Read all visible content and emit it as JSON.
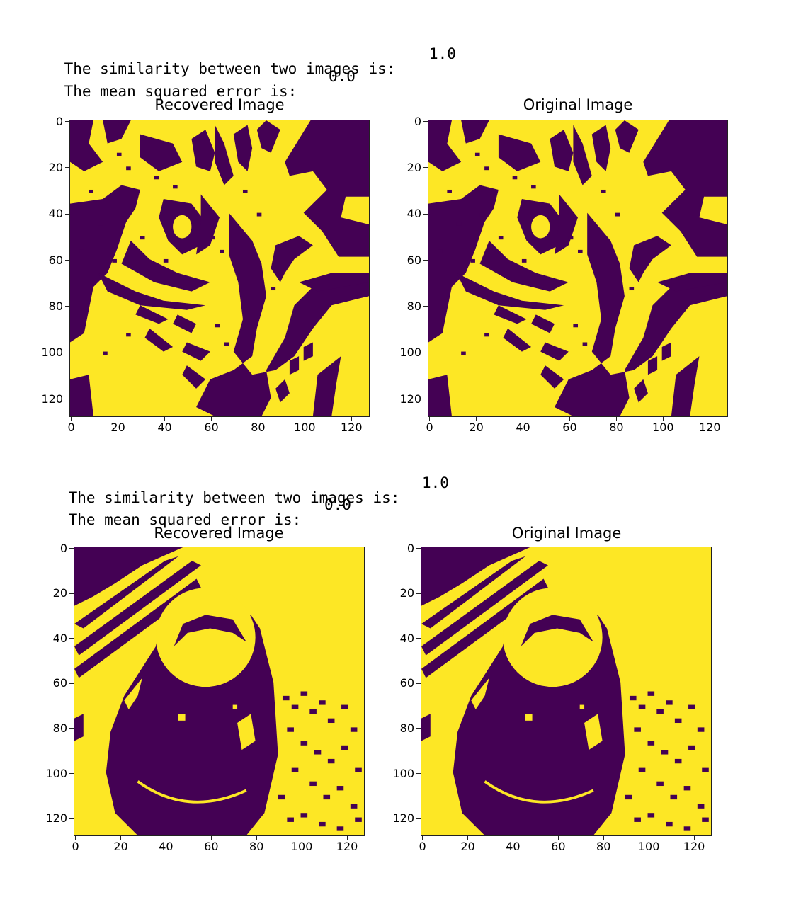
{
  "outputs": [
    {
      "similarity_label": "The similarity between two images is:",
      "similarity_value": "1.0",
      "mse_label": "The mean squared error is:",
      "mse_value": "0.0",
      "plots": [
        {
          "title": "Recovered Image"
        },
        {
          "title": "Original Image"
        }
      ]
    },
    {
      "similarity_label": "The similarity between two images is:",
      "similarity_value": "1.0",
      "mse_label": "The mean squared error is:",
      "mse_value": "0.0",
      "plots": [
        {
          "title": "Recovered Image"
        },
        {
          "title": "Original Image"
        }
      ]
    }
  ],
  "axis_ticks": {
    "x": [
      "0",
      "20",
      "40",
      "60",
      "80",
      "100",
      "120"
    ],
    "y": [
      "0",
      "20",
      "40",
      "60",
      "80",
      "100",
      "120"
    ]
  },
  "colors": {
    "low": "#440154",
    "high": "#fde725"
  },
  "image_content": {
    "first": "binary cat face",
    "second": "binary camera lens"
  }
}
